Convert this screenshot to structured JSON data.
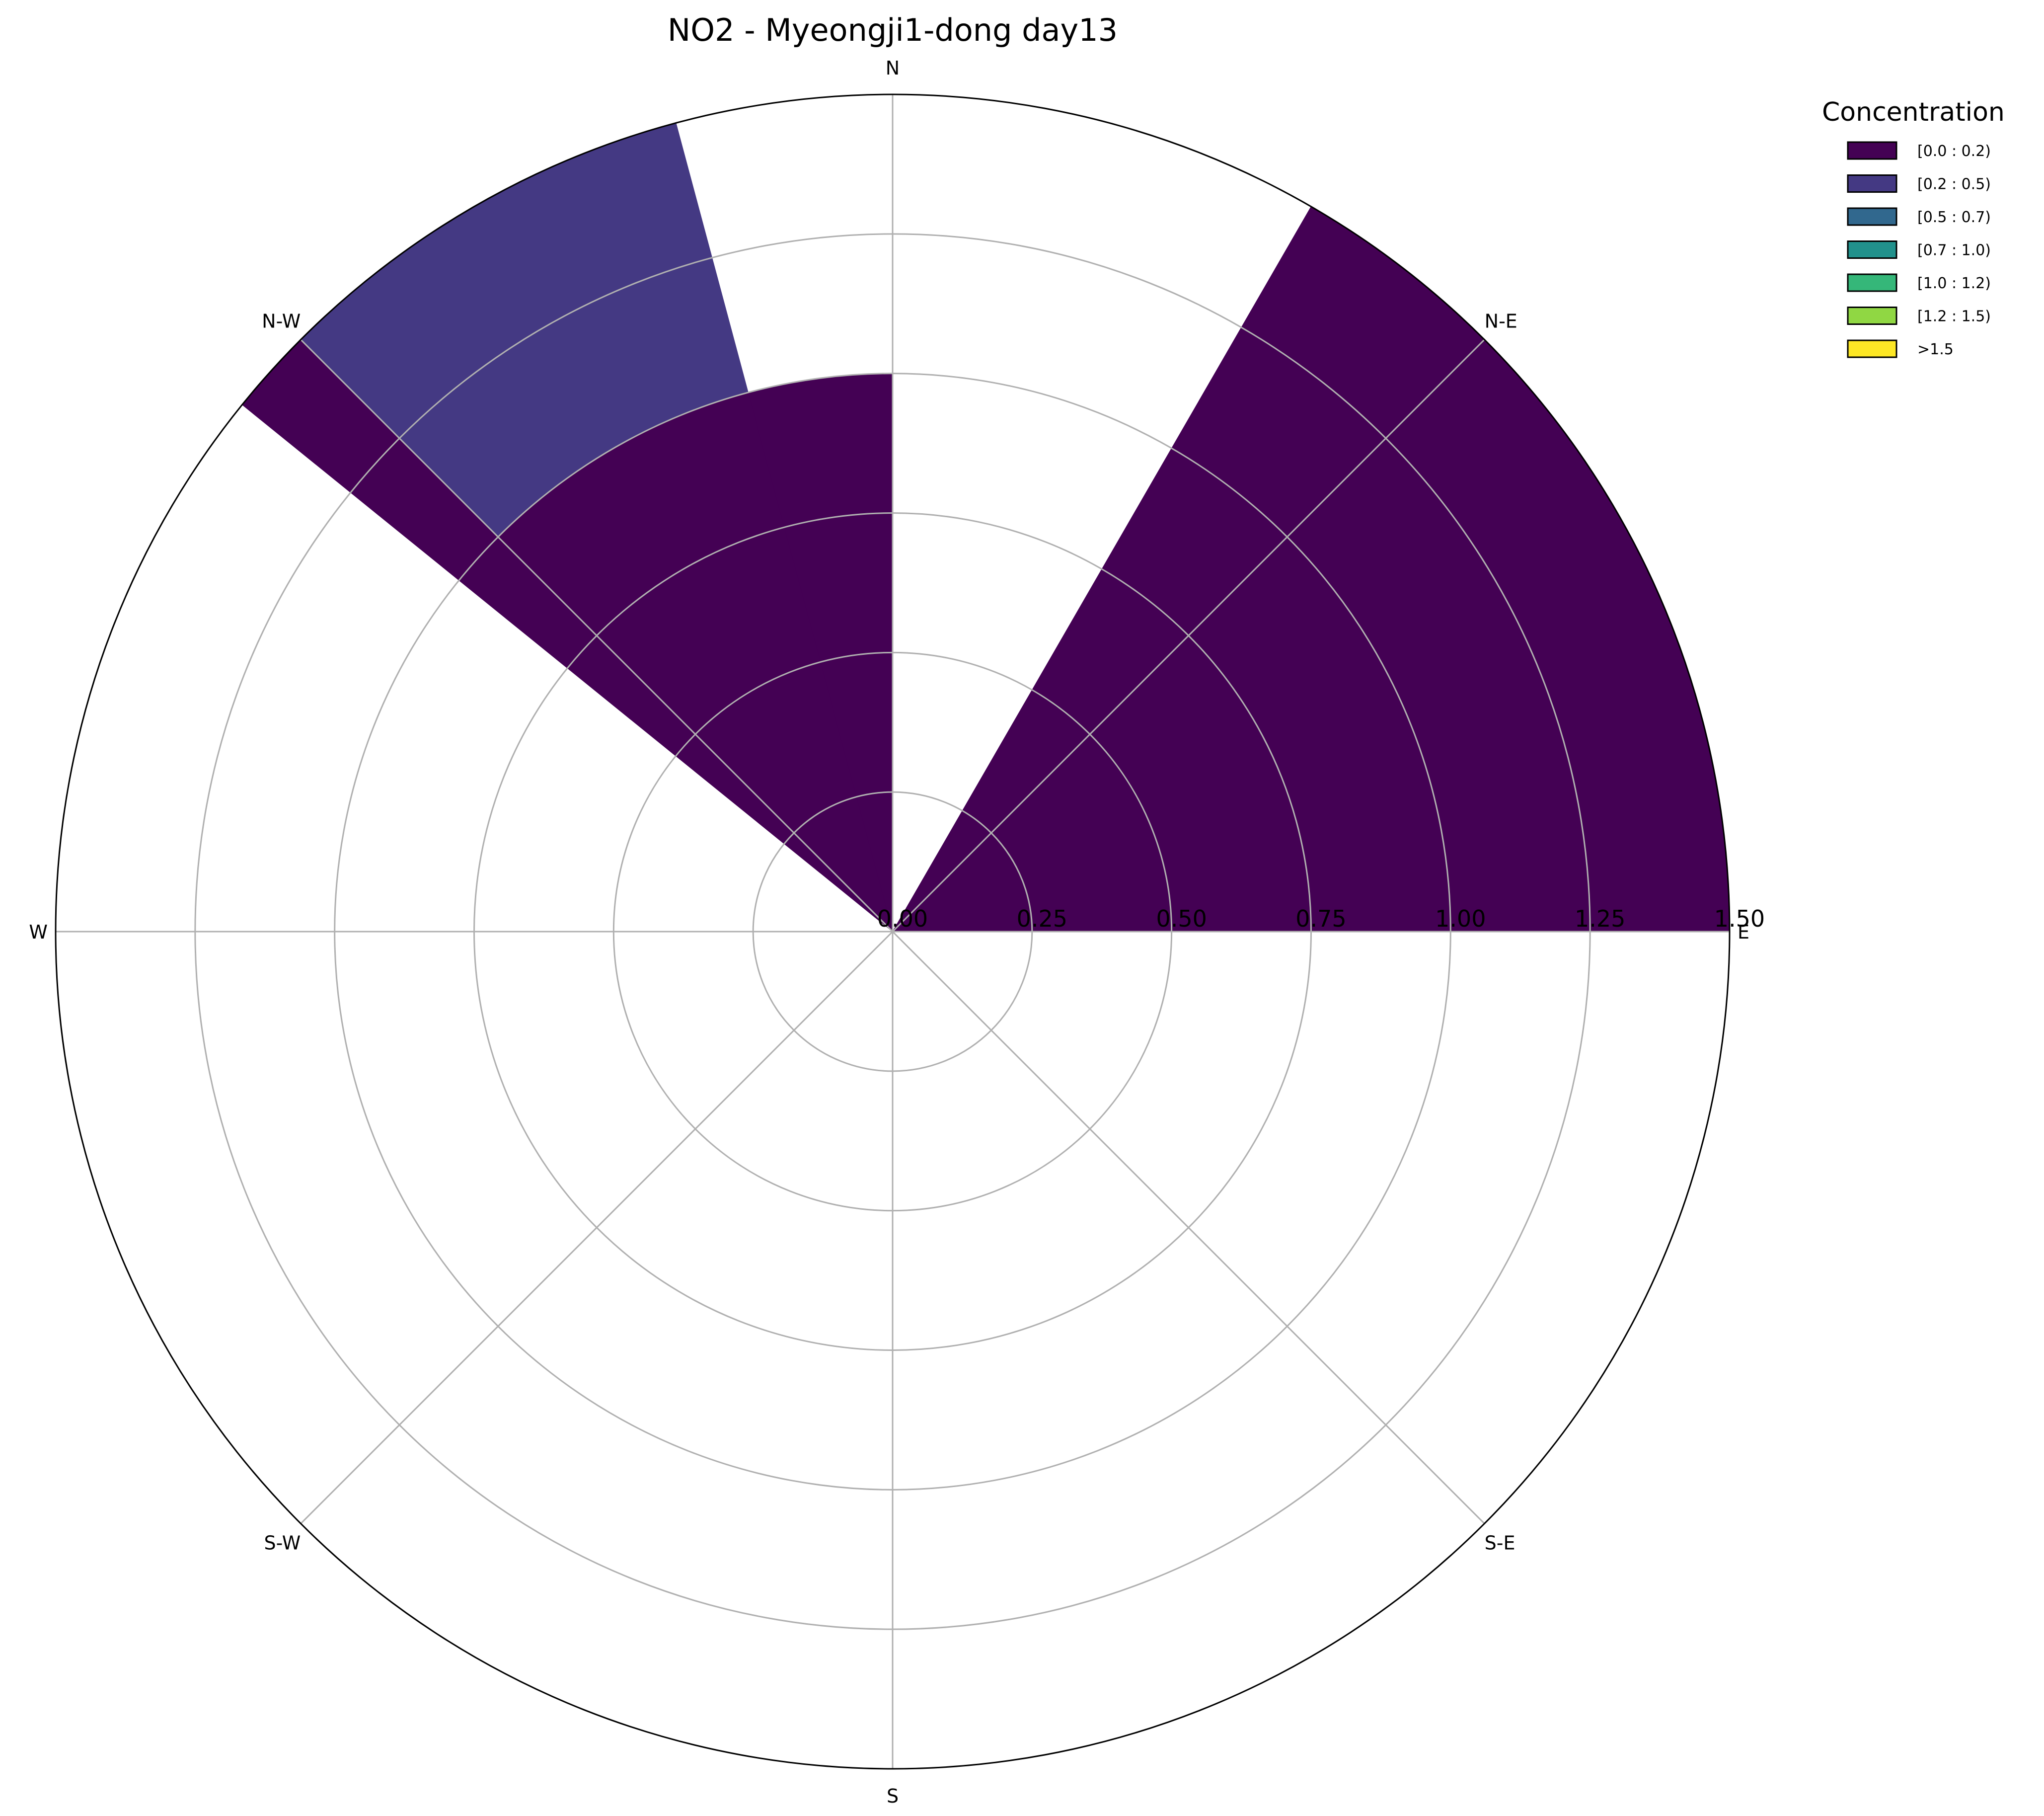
{
  "chart_data": {
    "type": "windrose",
    "title": "NO2 - Myeongji1-dong day13",
    "directions": [
      "N",
      "N-E",
      "E",
      "S-E",
      "S",
      "S-W",
      "W",
      "N-W"
    ],
    "direction_angles_deg": [
      90,
      45,
      0,
      -45,
      -90,
      -135,
      180,
      135
    ],
    "r_ticks": [
      "0.00",
      "0.25",
      "0.50",
      "0.75",
      "1.00",
      "1.25",
      "1.50"
    ],
    "r_tick_values": [
      0,
      0.25,
      0.5,
      0.75,
      1.0,
      1.25,
      1.5
    ],
    "rlim": [
      0,
      1.5
    ],
    "grid": true,
    "legend_title": "Concentration",
    "legend_position": "top-right",
    "bins": [
      {
        "label": "[0.0 : 0.2)",
        "color": "#440154"
      },
      {
        "label": "[0.2 : 0.5)",
        "color": "#443983"
      },
      {
        "label": "[0.5 : 0.7)",
        "color": "#31688e"
      },
      {
        "label": "[0.7 : 1.0)",
        "color": "#21918c"
      },
      {
        "label": "[1.0 : 1.2)",
        "color": "#35b779"
      },
      {
        "label": "[1.2 : 1.5)",
        "color": "#90d743"
      },
      {
        "label": ">1.5",
        "color": "#fde725"
      }
    ],
    "sectors": [
      {
        "start_deg": 0,
        "end_deg": 60,
        "segments": [
          {
            "bin": 0,
            "value": 1.5
          }
        ]
      },
      {
        "start_deg": 90,
        "end_deg": 135,
        "segments": [
          {
            "bin": 0,
            "value": 1.0
          }
        ]
      },
      {
        "start_deg": 105,
        "end_deg": 135,
        "segments": [
          {
            "bin": 0,
            "value": 1.0
          },
          {
            "bin": 1,
            "value": 0.5
          }
        ]
      },
      {
        "start_deg": 135,
        "end_deg": 141,
        "segments": [
          {
            "bin": 0,
            "value": 1.5
          }
        ]
      }
    ]
  }
}
